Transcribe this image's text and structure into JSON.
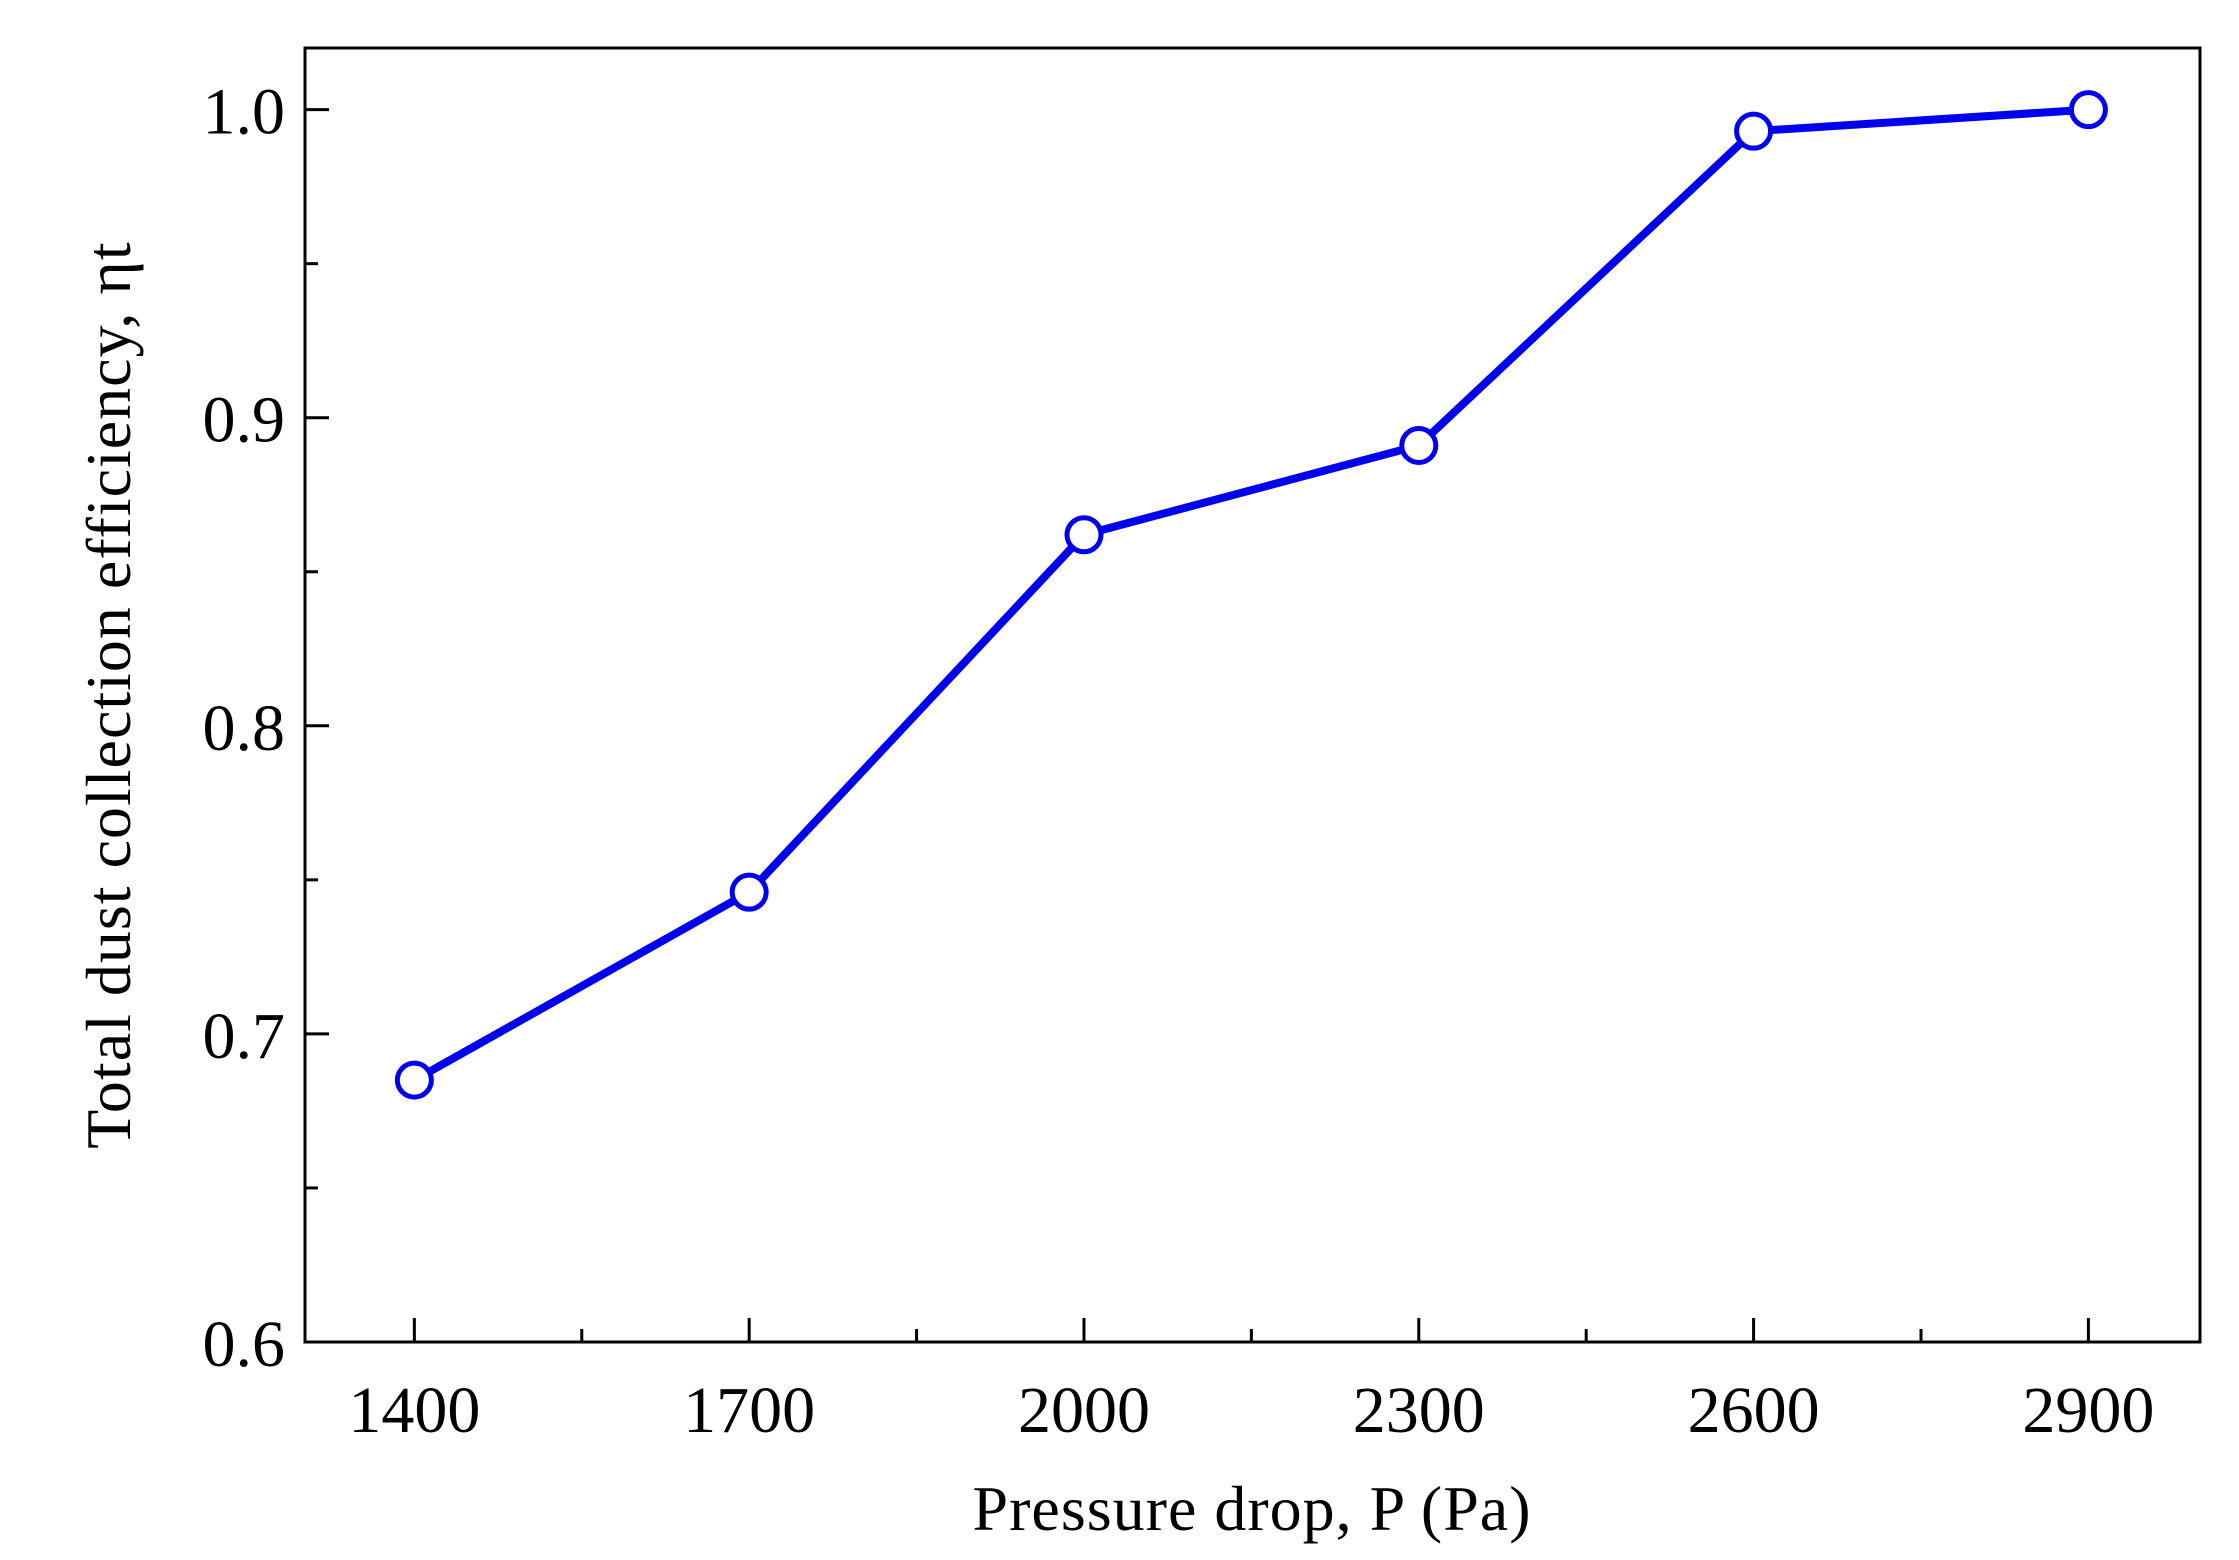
{
  "chart_data": {
    "type": "line",
    "x": [
      1400,
      1700,
      2000,
      2300,
      2600,
      2900
    ],
    "series": [
      {
        "values": [
          0.685,
          0.746,
          0.862,
          0.891,
          0.993,
          1.0
        ]
      }
    ],
    "xticks": [
      1400,
      1700,
      2000,
      2300,
      2600,
      2900
    ],
    "xtick_labels": [
      "1400",
      "1700",
      "2000",
      "2300",
      "2600",
      "2900"
    ],
    "yticks": [
      0.6,
      0.7,
      0.8,
      0.9,
      1.0
    ],
    "ytick_labels": [
      "0.6",
      "0.7",
      "0.8",
      "0.9",
      "1.0"
    ],
    "xlim": [
      1302,
      3000
    ],
    "ylim": [
      0.6,
      1.02
    ],
    "xlabel": "Pressure drop, P (Pa)",
    "ylabel": "Total dust collection efficiency, ηt",
    "grid": false,
    "colors": {
      "series": "#0000ee",
      "axis": "#000000"
    }
  }
}
